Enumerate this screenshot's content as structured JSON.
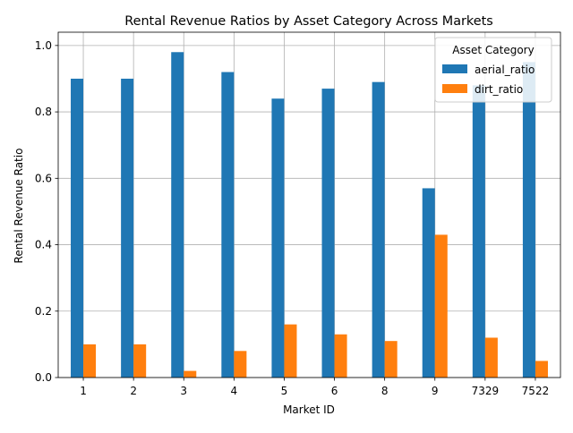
{
  "chart_data": {
    "type": "bar",
    "title": "Rental Revenue Ratios by Asset Category Across Markets",
    "xlabel": "Market ID",
    "ylabel": "Rental Revenue Ratio",
    "categories": [
      "1",
      "2",
      "3",
      "4",
      "5",
      "6",
      "8",
      "9",
      "7329",
      "7522"
    ],
    "series": [
      {
        "name": "aerial_ratio",
        "color": "#1f77b4",
        "values": [
          0.9,
          0.9,
          0.98,
          0.92,
          0.84,
          0.87,
          0.89,
          0.57,
          0.88,
          0.95
        ]
      },
      {
        "name": "dirt_ratio",
        "color": "#ff7f0e",
        "values": [
          0.1,
          0.1,
          0.02,
          0.08,
          0.16,
          0.13,
          0.11,
          0.43,
          0.12,
          0.05
        ]
      }
    ],
    "ylim": [
      0,
      1.04
    ],
    "yticks": [
      "0.0",
      "0.2",
      "0.4",
      "0.6",
      "0.8",
      "1.0"
    ],
    "grid": true,
    "legend": {
      "title": "Asset Category",
      "placement": "top-right"
    }
  }
}
